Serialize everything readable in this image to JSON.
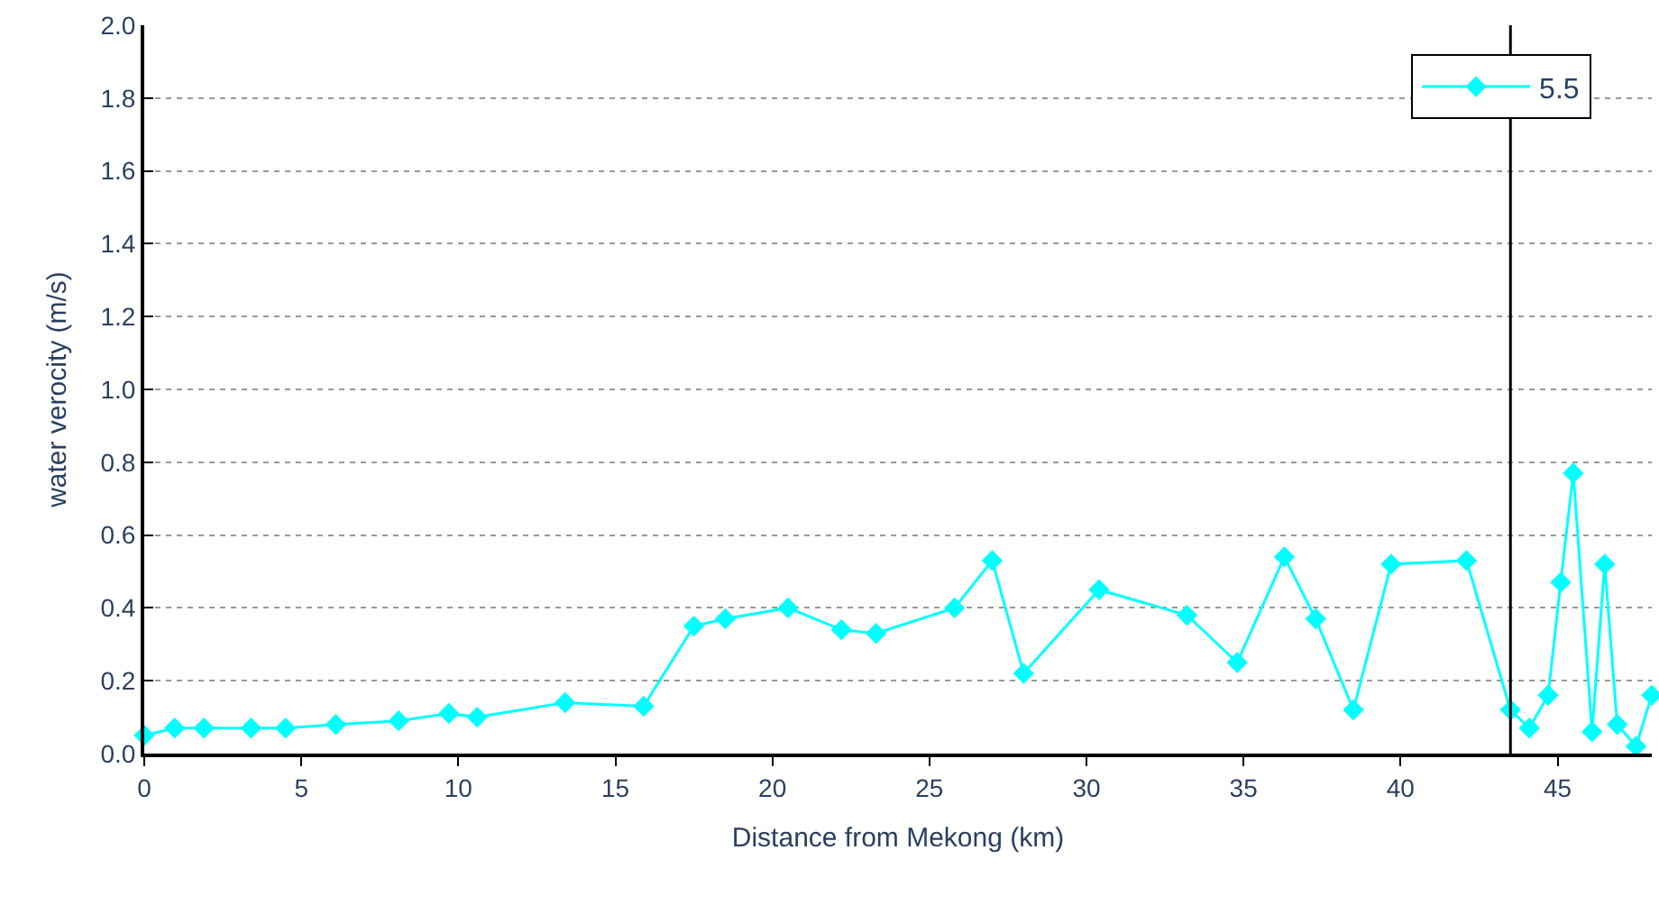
{
  "chart_data": {
    "type": "line",
    "xlabel": "Distance from Mekong (km)",
    "ylabel": "water verocity (m/s)",
    "xlim": [
      0,
      48
    ],
    "xticks": [
      0,
      5,
      10,
      15,
      20,
      25,
      30,
      35,
      40,
      45
    ],
    "ylim": [
      0,
      2
    ],
    "yticks": [
      {
        "value": 0,
        "label": "0.0"
      },
      {
        "value": 0.2,
        "label": "0.2"
      },
      {
        "value": 0.4,
        "label": "0.4"
      },
      {
        "value": 0.6,
        "label": "0.6"
      },
      {
        "value": 0.8,
        "label": "0.8"
      },
      {
        "value": 1.0,
        "label": "1.0"
      },
      {
        "value": 1.2,
        "label": "1.2"
      },
      {
        "value": 1.4,
        "label": "1.4"
      },
      {
        "value": 1.6,
        "label": "1.6"
      },
      {
        "value": 1.8,
        "label": "1.8"
      },
      {
        "value": 2.0,
        "label": "2.0"
      }
    ],
    "grid": "y",
    "legend": "top right",
    "marker": "diamond",
    "line_style": "solid",
    "ref_lines": [
      {
        "axis": "x",
        "value": 43.5,
        "label": null,
        "color": "#000000"
      }
    ],
    "series": [
      {
        "name": "5.5",
        "color": "#00ffff",
        "x": [
          0,
          0.97,
          1.9,
          3.4,
          4.5,
          6.1,
          8.1,
          9.7,
          10.6,
          13.4,
          15.9,
          17.5,
          18.5,
          20.5,
          22.2,
          23.3,
          25.8,
          27.0,
          28.0,
          30.4,
          33.2,
          34.8,
          36.3,
          37.3,
          38.5,
          39.7,
          42.1,
          43.5,
          44.1,
          44.7,
          45.1,
          45.5,
          46.1,
          46.5,
          46.9,
          47.5,
          48.0
        ],
        "values": [
          0.05,
          0.07,
          0.07,
          0.07,
          0.07,
          0.08,
          0.09,
          0.11,
          0.1,
          0.14,
          0.13,
          0.35,
          0.37,
          0.4,
          0.34,
          0.33,
          0.4,
          0.53,
          0.22,
          0.45,
          0.38,
          0.25,
          0.54,
          0.37,
          0.12,
          0.52,
          0.53,
          0.12,
          0.07,
          0.16,
          0.47,
          0.77,
          0.06,
          0.52,
          0.08,
          0.02,
          0.16
        ]
      }
    ]
  }
}
